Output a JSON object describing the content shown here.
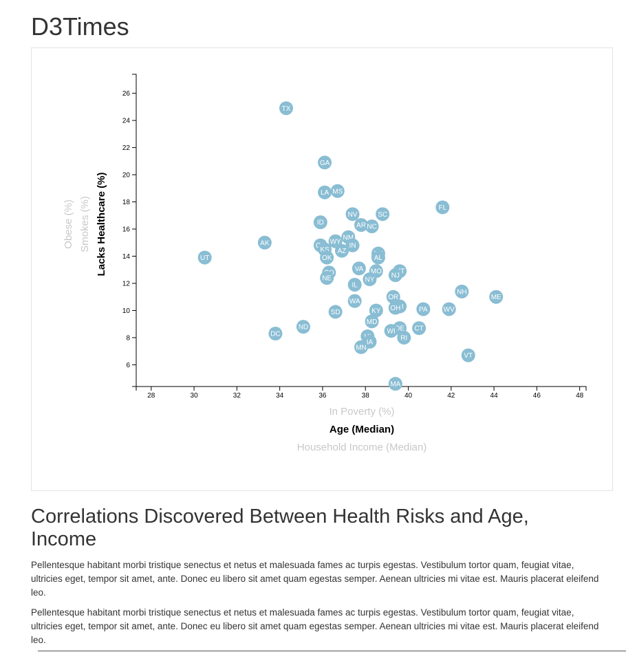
{
  "page": {
    "title": "D3Times",
    "section_heading": "Correlations Discovered Between Health Risks and Age, Income",
    "paragraphs": [
      "Pellentesque habitant morbi tristique senectus et netus et malesuada fames ac turpis egestas. Vestibulum tortor quam, feugiat vitae, ultricies eget, tempor sit amet, ante. Donec eu libero sit amet quam egestas semper. Aenean ultricies mi vitae est. Mauris placerat eleifend leo.",
      "Pellentesque habitant morbi tristique senectus et netus et malesuada fames ac turpis egestas. Vestibulum tortor quam, feugiat vitae, ultricies eget, tempor sit amet, ante. Donec eu libero sit amet quam egestas semper. Aenean ultricies mi vitae est. Mauris placerat eleifend leo."
    ]
  },
  "chart_data": {
    "type": "scatter",
    "marker_color": "#89bdd3",
    "label_color": "#ffffff",
    "inactive_label_color": "#c8c8c8",
    "xlim": [
      27.3,
      48.3
    ],
    "ylim": [
      4.4,
      27.4
    ],
    "x_ticks": [
      28,
      30,
      32,
      34,
      36,
      38,
      40,
      42,
      44,
      46,
      48
    ],
    "y_ticks": [
      6,
      8,
      10,
      12,
      14,
      16,
      18,
      20,
      22,
      24,
      26
    ],
    "x_axis_labels": [
      {
        "text": "In Poverty (%)",
        "active": false
      },
      {
        "text": "Age (Median)",
        "active": true
      },
      {
        "text": "Household Income (Median)",
        "active": false
      }
    ],
    "y_axis_labels": [
      {
        "text": "Lacks Healthcare (%)",
        "active": true
      },
      {
        "text": "Smokes (%)",
        "active": false
      },
      {
        "text": "Obese (%)",
        "active": false
      }
    ],
    "points": [
      {
        "abbr": "TX",
        "x": 34.3,
        "y": 24.9
      },
      {
        "abbr": "GA",
        "x": 36.1,
        "y": 20.9
      },
      {
        "abbr": "LA",
        "x": 36.1,
        "y": 18.7
      },
      {
        "abbr": "MS",
        "x": 36.7,
        "y": 18.8
      },
      {
        "abbr": "FL",
        "x": 41.6,
        "y": 17.6
      },
      {
        "abbr": "NV",
        "x": 37.4,
        "y": 17.1
      },
      {
        "abbr": "SC",
        "x": 38.8,
        "y": 17.1
      },
      {
        "abbr": "ID",
        "x": 35.9,
        "y": 16.5
      },
      {
        "abbr": "AR",
        "x": 37.8,
        "y": 16.3
      },
      {
        "abbr": "NC",
        "x": 38.3,
        "y": 16.2
      },
      {
        "abbr": "NM",
        "x": 37.2,
        "y": 15.4
      },
      {
        "abbr": "AK",
        "x": 33.3,
        "y": 15.0
      },
      {
        "abbr": "WY",
        "x": 36.6,
        "y": 15.1
      },
      {
        "abbr": "IN",
        "x": 37.4,
        "y": 14.8
      },
      {
        "abbr": "CA",
        "x": 35.9,
        "y": 14.8
      },
      {
        "abbr": "KS",
        "x": 36.1,
        "y": 14.5
      },
      {
        "abbr": "AZ",
        "x": 36.9,
        "y": 14.4
      },
      {
        "abbr": "TN",
        "x": 38.6,
        "y": 14.2
      },
      {
        "abbr": "AL",
        "x": 38.6,
        "y": 13.9
      },
      {
        "abbr": "OK",
        "x": 36.2,
        "y": 13.9
      },
      {
        "abbr": "UT",
        "x": 30.5,
        "y": 13.9
      },
      {
        "abbr": "VA",
        "x": 37.7,
        "y": 13.1
      },
      {
        "abbr": "MO",
        "x": 38.5,
        "y": 12.9
      },
      {
        "abbr": "MT",
        "x": 39.6,
        "y": 12.9
      },
      {
        "abbr": "CO",
        "x": 36.3,
        "y": 12.8
      },
      {
        "abbr": "NJ",
        "x": 39.4,
        "y": 12.6
      },
      {
        "abbr": "NE",
        "x": 36.2,
        "y": 12.4
      },
      {
        "abbr": "NY",
        "x": 38.2,
        "y": 12.3
      },
      {
        "abbr": "IL",
        "x": 37.5,
        "y": 11.9
      },
      {
        "abbr": "NH",
        "x": 42.5,
        "y": 11.4
      },
      {
        "abbr": "ME",
        "x": 44.1,
        "y": 11.0
      },
      {
        "abbr": "OR",
        "x": 39.3,
        "y": 11.0
      },
      {
        "abbr": "WA",
        "x": 37.5,
        "y": 10.7
      },
      {
        "abbr": "MI",
        "x": 39.6,
        "y": 10.3
      },
      {
        "abbr": "OH",
        "x": 39.4,
        "y": 10.2
      },
      {
        "abbr": "PA",
        "x": 40.7,
        "y": 10.1
      },
      {
        "abbr": "WV",
        "x": 41.9,
        "y": 10.1
      },
      {
        "abbr": "KY",
        "x": 38.5,
        "y": 10.0
      },
      {
        "abbr": "SD",
        "x": 36.6,
        "y": 9.9
      },
      {
        "abbr": "MD",
        "x": 38.3,
        "y": 9.2
      },
      {
        "abbr": "ND",
        "x": 35.1,
        "y": 8.8
      },
      {
        "abbr": "CT",
        "x": 40.5,
        "y": 8.7
      },
      {
        "abbr": "DE",
        "x": 39.6,
        "y": 8.7
      },
      {
        "abbr": "WI",
        "x": 39.2,
        "y": 8.5
      },
      {
        "abbr": "DC",
        "x": 33.8,
        "y": 8.3
      },
      {
        "abbr": "HI",
        "x": 38.1,
        "y": 8.1
      },
      {
        "abbr": "RI",
        "x": 39.8,
        "y": 8.0
      },
      {
        "abbr": "IA",
        "x": 38.2,
        "y": 7.7
      },
      {
        "abbr": "MN",
        "x": 37.8,
        "y": 7.3
      },
      {
        "abbr": "VT",
        "x": 42.8,
        "y": 6.7
      },
      {
        "abbr": "MA",
        "x": 39.4,
        "y": 4.6
      }
    ]
  }
}
